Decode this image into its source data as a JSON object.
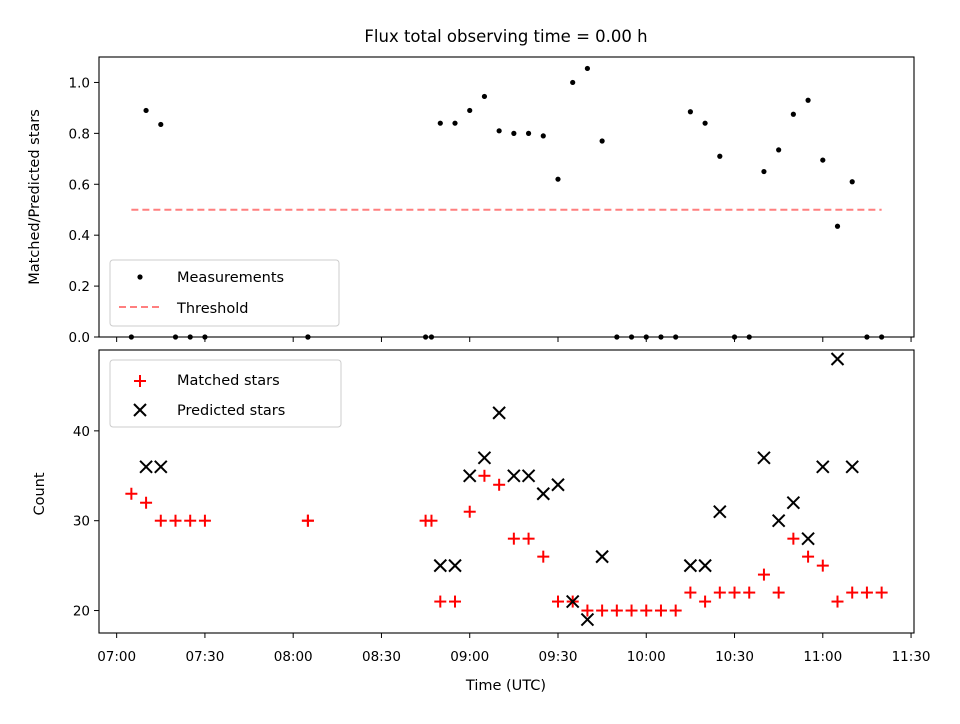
{
  "chart_data": {
    "type": "scatter",
    "title": "Flux total observing time = 0.00 h",
    "xlabel": "Time (UTC)",
    "x_ticks": [
      "07:00",
      "07:30",
      "08:00",
      "08:30",
      "09:00",
      "09:30",
      "10:00",
      "10:30",
      "11:00",
      "11:30"
    ],
    "x_range": [
      "06:54",
      "11:31"
    ],
    "panels": [
      {
        "ylabel": "Matched/Predicted stars",
        "ylim": [
          0,
          1.1
        ],
        "y_ticks": [
          "0.0",
          "0.2",
          "0.4",
          "0.6",
          "0.8",
          "1.0"
        ],
        "legend_position": "lower-left",
        "series": [
          {
            "name": "Measurements",
            "kind": "point",
            "color": "#000000",
            "x": [
              "07:05",
              "07:10",
              "07:15",
              "07:20",
              "07:25",
              "07:30",
              "08:05",
              "08:05",
              "08:45",
              "08:47",
              "08:50",
              "08:55",
              "09:00",
              "09:05",
              "09:10",
              "09:15",
              "09:20",
              "09:25",
              "09:30",
              "09:35",
              "09:40",
              "09:45",
              "09:50",
              "09:55",
              "10:00",
              "10:05",
              "10:10",
              "10:15",
              "10:20",
              "10:25",
              "10:30",
              "10:35",
              "10:40",
              "10:45",
              "10:50",
              "10:55",
              "11:00",
              "11:05",
              "11:10",
              "11:15",
              "11:20"
            ],
            "y": [
              0,
              0.89,
              0.835,
              0,
              0,
              0,
              0,
              0,
              0,
              0,
              0.84,
              0.84,
              0.89,
              0.945,
              0.81,
              0.8,
              0.8,
              0.79,
              0.62,
              1.0,
              1.055,
              0.77,
              0,
              0,
              0,
              0,
              0,
              0.885,
              0.84,
              0.71,
              0,
              0,
              0.65,
              0.735,
              0.875,
              0.93,
              0.695,
              0.435,
              0.61,
              0,
              0
            ]
          },
          {
            "name": "Threshold",
            "kind": "dashed-line",
            "color": "#ff7f7f",
            "x": [
              "07:05",
              "11:20"
            ],
            "y": [
              0.5,
              0.5
            ]
          }
        ]
      },
      {
        "ylabel": "Count",
        "ylim": [
          17.5,
          49
        ],
        "y_ticks": [
          "20",
          "30",
          "40"
        ],
        "legend_position": "upper-left",
        "series": [
          {
            "name": "Matched stars",
            "kind": "plus",
            "color": "#ff0000",
            "x": [
              "07:05",
              "07:10",
              "07:15",
              "07:20",
              "07:25",
              "07:30",
              "08:05",
              "08:05",
              "08:45",
              "08:47",
              "08:50",
              "08:55",
              "09:00",
              "09:05",
              "09:10",
              "09:15",
              "09:20",
              "09:25",
              "09:30",
              "09:35",
              "09:40",
              "09:45",
              "09:50",
              "09:55",
              "10:00",
              "10:05",
              "10:10",
              "10:15",
              "10:20",
              "10:25",
              "10:30",
              "10:35",
              "10:40",
              "10:45",
              "10:50",
              "10:55",
              "11:00",
              "11:05",
              "11:10",
              "11:15",
              "11:20"
            ],
            "y": [
              33,
              32,
              30,
              30,
              30,
              30,
              30,
              30,
              30,
              30,
              21,
              21,
              31,
              35,
              34,
              28,
              28,
              26,
              21,
              21,
              20,
              20,
              20,
              20,
              20,
              20,
              20,
              22,
              21,
              22,
              22,
              22,
              24,
              22,
              28,
              26,
              25,
              21,
              22,
              22,
              22
            ]
          },
          {
            "name": "Predicted stars",
            "kind": "x",
            "color": "#000000",
            "x": [
              "07:10",
              "07:15",
              "08:50",
              "08:55",
              "09:00",
              "09:05",
              "09:10",
              "09:15",
              "09:20",
              "09:25",
              "09:30",
              "09:35",
              "09:40",
              "09:45",
              "10:15",
              "10:20",
              "10:25",
              "10:40",
              "10:45",
              "10:50",
              "10:55",
              "11:00",
              "11:05",
              "11:10"
            ],
            "y": [
              36,
              36,
              25,
              25,
              35,
              37,
              42,
              35,
              35,
              33,
              34,
              21,
              19,
              26,
              25,
              25,
              31,
              37,
              30,
              32,
              28,
              36,
              48,
              36
            ]
          }
        ]
      }
    ]
  }
}
